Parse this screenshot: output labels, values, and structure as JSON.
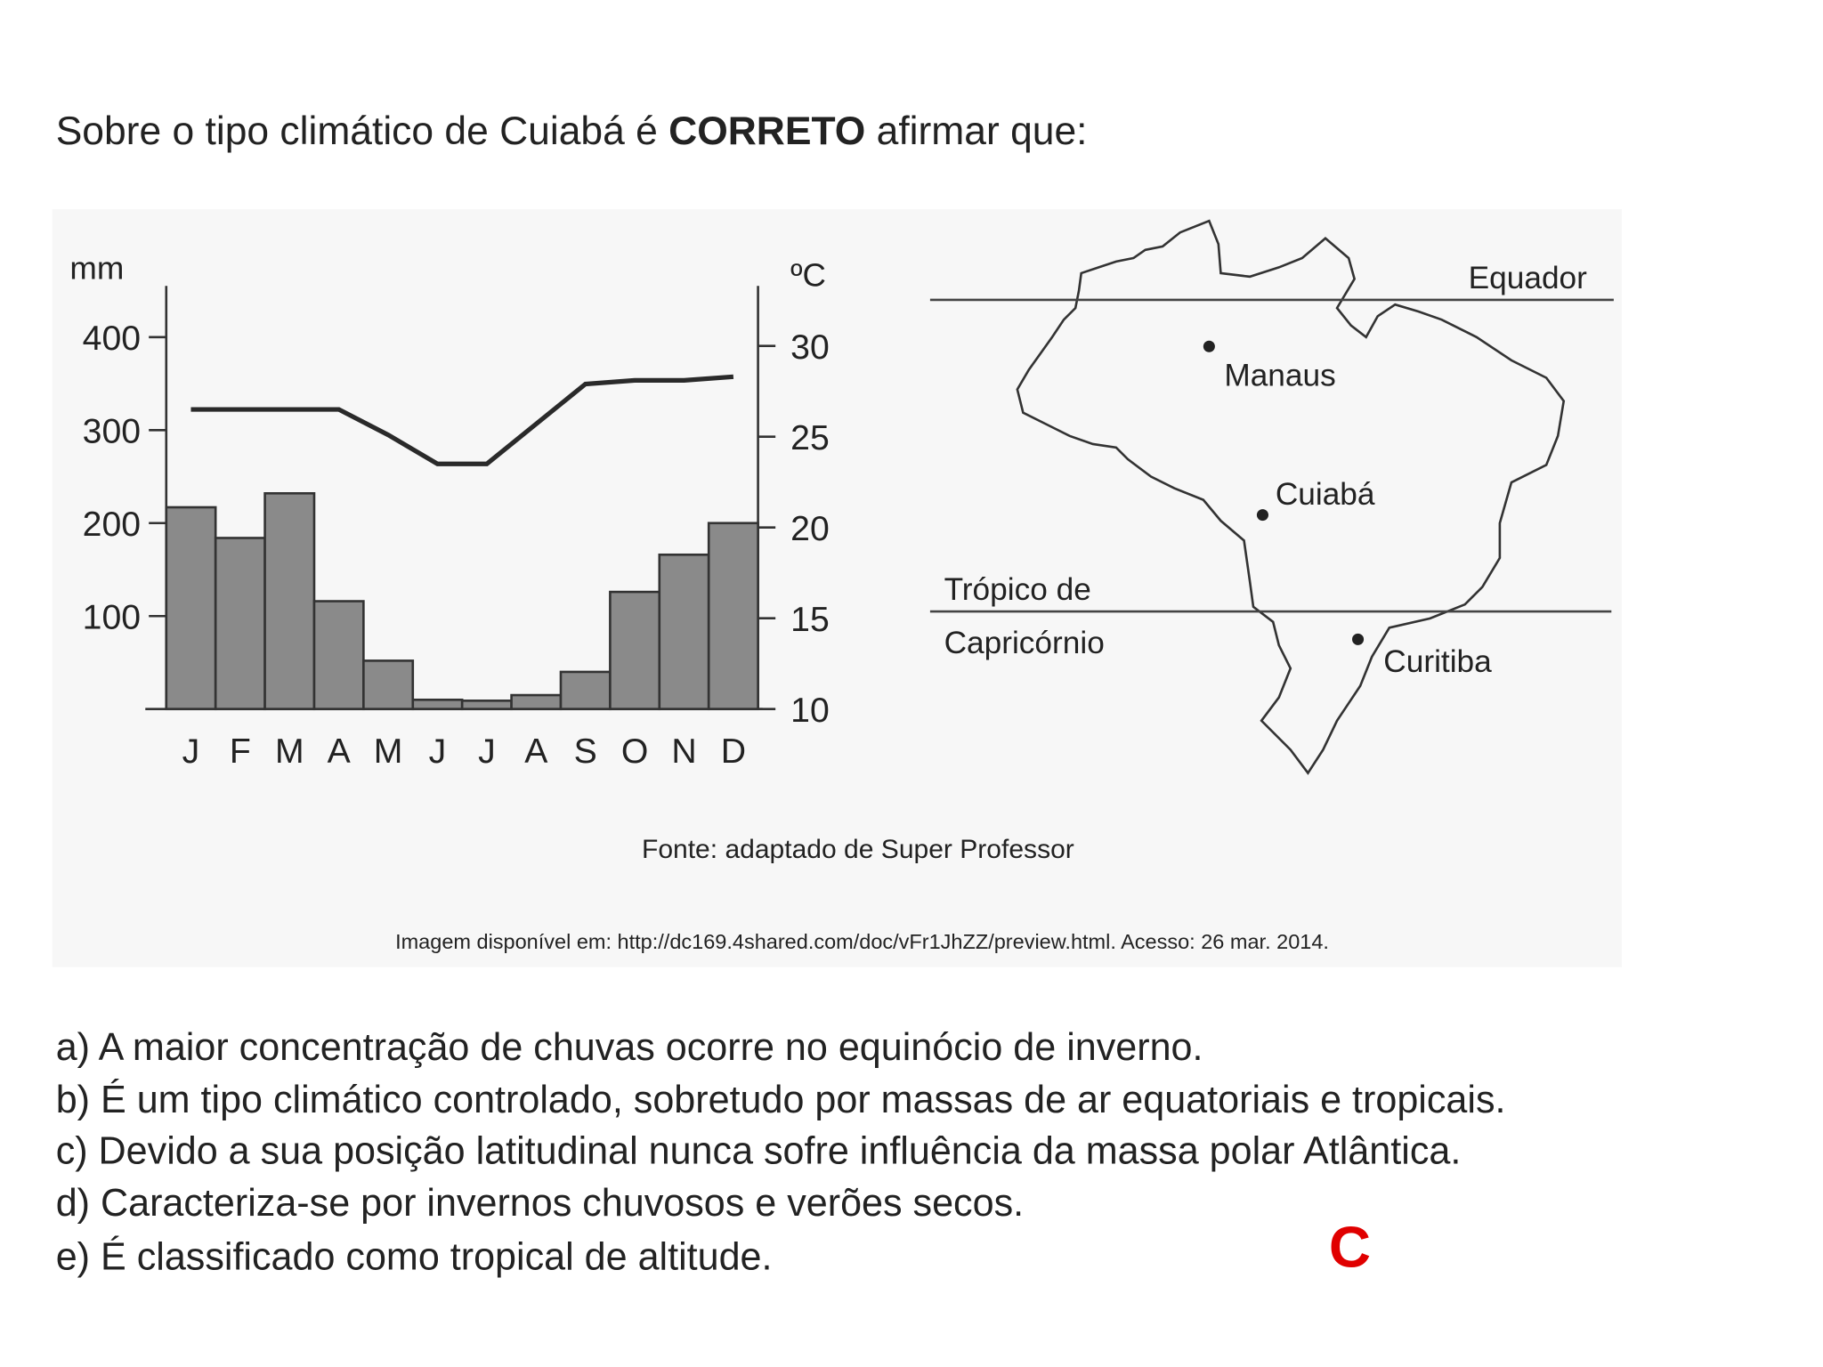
{
  "question": {
    "before": "Sobre o tipo climático de Cuiabá é ",
    "bold": "CORRETO",
    "after": " afirmar que:"
  },
  "chart_data": {
    "type": "bar",
    "y_label": "mm",
    "y2_label": "ºC",
    "categories": [
      "J",
      "F",
      "M",
      "A",
      "M",
      "J",
      "J",
      "A",
      "S",
      "O",
      "N",
      "D"
    ],
    "series": [
      {
        "type": "bar",
        "color": "#8a8a8a",
        "values": [
          217,
          184,
          232,
          116,
          52,
          10,
          9,
          15,
          40,
          126,
          166,
          200
        ]
      },
      {
        "type": "line",
        "axis": "y2",
        "color": "#2a2a2a",
        "values": [
          26.5,
          26.5,
          26.5,
          26.5,
          25.1,
          23.5,
          23.5,
          25.7,
          27.9,
          28.1,
          28.1,
          28.3
        ]
      }
    ],
    "ylim": [
      0,
      455
    ],
    "yticks": [
      100,
      200,
      300,
      400
    ],
    "y2lim": [
      10,
      33.3
    ],
    "y2ticks": [
      10,
      15,
      20,
      25,
      30
    ]
  },
  "map": {
    "equator": "Equador",
    "tropic_line1": "Trópico de",
    "tropic_line2": "Capricórnio",
    "cities": [
      "Manaus",
      "Cuiabá",
      "Curitiba"
    ]
  },
  "source": "Fonte: adaptado de Super Professor",
  "credit": "Imagem disponível em: http://dc169.4shared.com/doc/vFr1JhZZ/preview.html. Acesso: 26 mar. 2014.",
  "options": [
    "a) A maior concentração de chuvas ocorre no equinócio de inverno.",
    "b) É um tipo climático controlado, sobretudo por massas de ar equatoriais e tropicais.",
    "c) Devido a sua posição latitudinal nunca sofre influência da massa polar Atlântica.",
    "d) Caracteriza-se por invernos chuvosos e verões secos.",
    "e) É classificado como tropical de altitude."
  ],
  "answer": "C"
}
